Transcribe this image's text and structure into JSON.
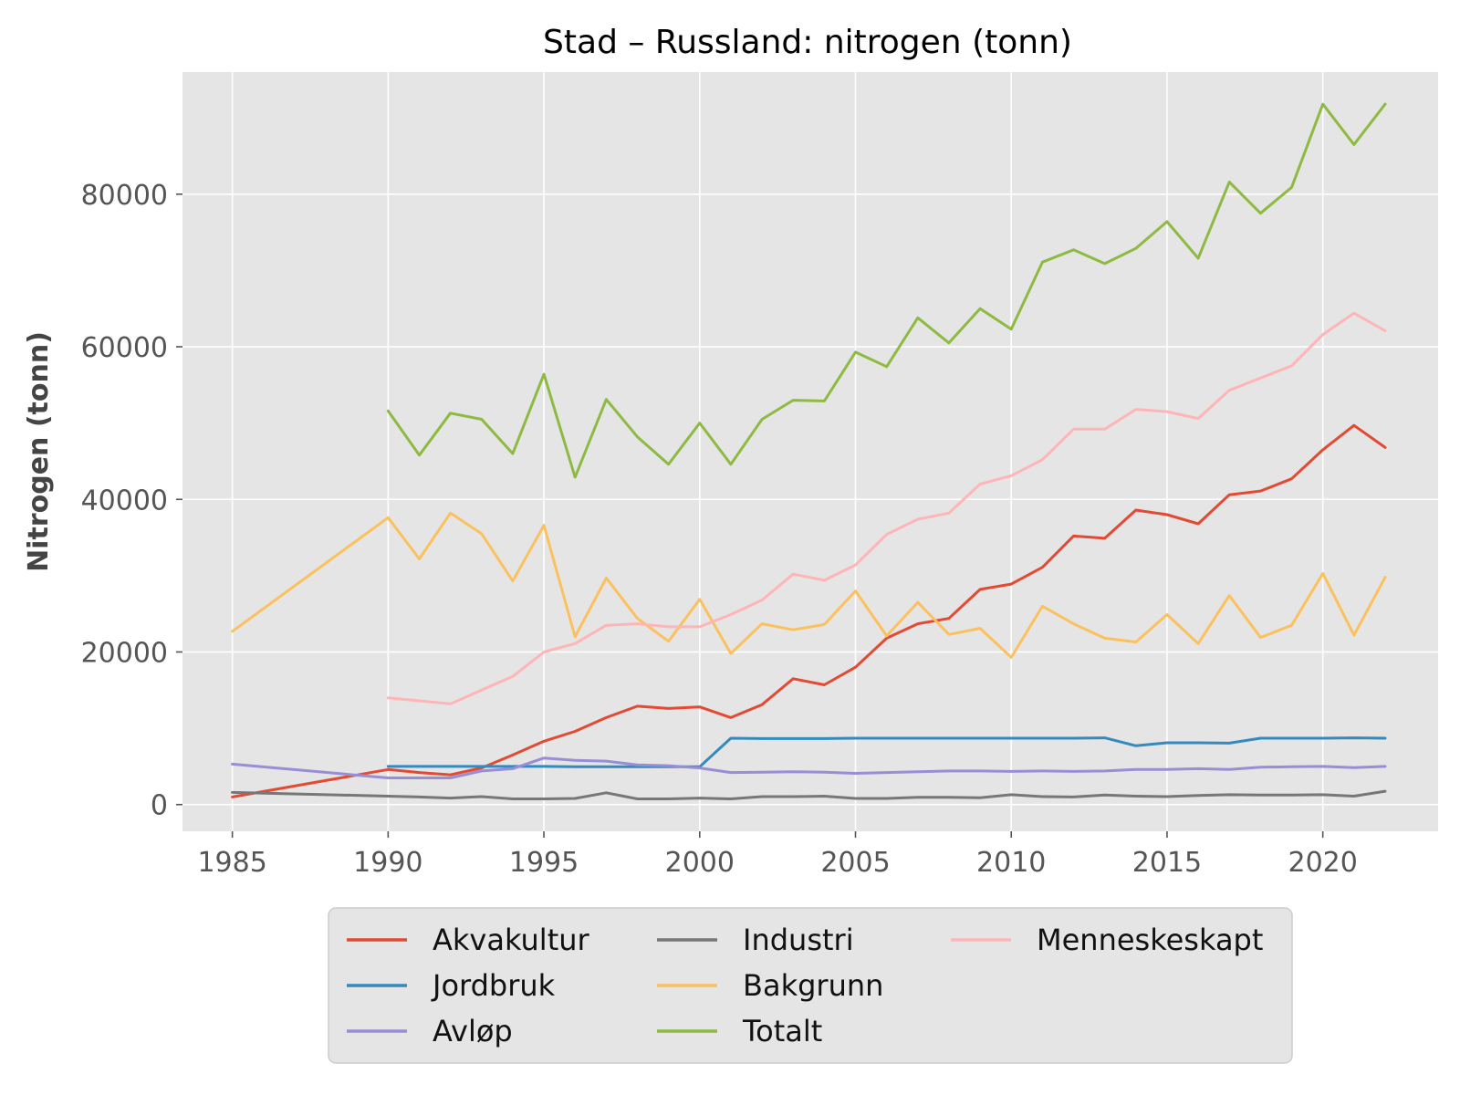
{
  "chart_data": {
    "type": "line",
    "title": "Stad – Russland: nitrogen (tonn)",
    "xlabel": "",
    "ylabel": "Nitrogen (tonn)",
    "xlim": [
      1983.4,
      2023.7
    ],
    "ylim": [
      -3500,
      96000
    ],
    "xticks": [
      1985,
      1990,
      1995,
      2000,
      2005,
      2010,
      2015,
      2020
    ],
    "yticks": [
      0,
      20000,
      40000,
      60000,
      80000
    ],
    "grid": true,
    "legend_position": "bottom",
    "legend_columns": 3,
    "series": [
      {
        "name": "Akvakultur",
        "color": "#E24A33",
        "points": [
          [
            1985,
            1000
          ],
          [
            1990,
            4600
          ],
          [
            1991,
            4200
          ],
          [
            1992,
            3900
          ],
          [
            1993,
            4800
          ],
          [
            1994,
            6500
          ],
          [
            1995,
            8300
          ],
          [
            1996,
            9600
          ],
          [
            1997,
            11400
          ],
          [
            1998,
            12900
          ],
          [
            1999,
            12600
          ],
          [
            2000,
            12800
          ],
          [
            2001,
            11400
          ],
          [
            2002,
            13100
          ],
          [
            2003,
            16500
          ],
          [
            2004,
            15700
          ],
          [
            2005,
            18000
          ],
          [
            2006,
            21800
          ],
          [
            2007,
            23700
          ],
          [
            2008,
            24400
          ],
          [
            2009,
            28200
          ],
          [
            2010,
            28900
          ],
          [
            2011,
            31100
          ],
          [
            2012,
            35200
          ],
          [
            2013,
            34900
          ],
          [
            2014,
            38600
          ],
          [
            2015,
            38000
          ],
          [
            2016,
            36800
          ],
          [
            2017,
            40600
          ],
          [
            2018,
            41100
          ],
          [
            2019,
            42700
          ],
          [
            2020,
            46500
          ],
          [
            2021,
            49700
          ],
          [
            2022,
            46800
          ]
        ]
      },
      {
        "name": "Jordbruk",
        "color": "#348ABD",
        "points": [
          [
            1990,
            5000
          ],
          [
            1991,
            5000
          ],
          [
            1992,
            5000
          ],
          [
            1993,
            5000
          ],
          [
            1994,
            5000
          ],
          [
            1995,
            5000
          ],
          [
            1996,
            4950
          ],
          [
            1997,
            4950
          ],
          [
            1998,
            4950
          ],
          [
            1999,
            4950
          ],
          [
            2000,
            4950
          ],
          [
            2001,
            8700
          ],
          [
            2002,
            8650
          ],
          [
            2003,
            8650
          ],
          [
            2004,
            8650
          ],
          [
            2005,
            8700
          ],
          [
            2006,
            8700
          ],
          [
            2007,
            8700
          ],
          [
            2008,
            8700
          ],
          [
            2009,
            8700
          ],
          [
            2010,
            8700
          ],
          [
            2011,
            8700
          ],
          [
            2012,
            8700
          ],
          [
            2013,
            8750
          ],
          [
            2014,
            7700
          ],
          [
            2015,
            8100
          ],
          [
            2016,
            8100
          ],
          [
            2017,
            8050
          ],
          [
            2018,
            8700
          ],
          [
            2019,
            8700
          ],
          [
            2020,
            8700
          ],
          [
            2021,
            8750
          ],
          [
            2022,
            8700
          ]
        ]
      },
      {
        "name": "Avløp",
        "color": "#988ED5",
        "points": [
          [
            1985,
            5300
          ],
          [
            1990,
            3500
          ],
          [
            1991,
            3500
          ],
          [
            1992,
            3500
          ],
          [
            1993,
            4400
          ],
          [
            1994,
            4700
          ],
          [
            1995,
            6100
          ],
          [
            1996,
            5800
          ],
          [
            1997,
            5700
          ],
          [
            1998,
            5200
          ],
          [
            1999,
            5100
          ],
          [
            2000,
            4800
          ],
          [
            2001,
            4200
          ],
          [
            2002,
            4250
          ],
          [
            2003,
            4300
          ],
          [
            2004,
            4250
          ],
          [
            2005,
            4100
          ],
          [
            2006,
            4200
          ],
          [
            2007,
            4300
          ],
          [
            2008,
            4400
          ],
          [
            2009,
            4400
          ],
          [
            2010,
            4350
          ],
          [
            2011,
            4400
          ],
          [
            2012,
            4350
          ],
          [
            2013,
            4400
          ],
          [
            2014,
            4600
          ],
          [
            2015,
            4600
          ],
          [
            2016,
            4700
          ],
          [
            2017,
            4600
          ],
          [
            2018,
            4900
          ],
          [
            2019,
            4950
          ],
          [
            2020,
            5000
          ],
          [
            2021,
            4850
          ],
          [
            2022,
            5000
          ]
        ]
      },
      {
        "name": "Industri",
        "color": "#777777",
        "points": [
          [
            1985,
            1600
          ],
          [
            1990,
            1100
          ],
          [
            1991,
            1000
          ],
          [
            1992,
            850
          ],
          [
            1993,
            1050
          ],
          [
            1994,
            750
          ],
          [
            1995,
            750
          ],
          [
            1996,
            800
          ],
          [
            1997,
            1550
          ],
          [
            1998,
            750
          ],
          [
            1999,
            750
          ],
          [
            2000,
            850
          ],
          [
            2001,
            750
          ],
          [
            2002,
            1050
          ],
          [
            2003,
            1050
          ],
          [
            2004,
            1100
          ],
          [
            2005,
            800
          ],
          [
            2006,
            800
          ],
          [
            2007,
            950
          ],
          [
            2008,
            950
          ],
          [
            2009,
            900
          ],
          [
            2010,
            1300
          ],
          [
            2011,
            1050
          ],
          [
            2012,
            1000
          ],
          [
            2013,
            1250
          ],
          [
            2014,
            1100
          ],
          [
            2015,
            1050
          ],
          [
            2016,
            1200
          ],
          [
            2017,
            1300
          ],
          [
            2018,
            1250
          ],
          [
            2019,
            1250
          ],
          [
            2020,
            1300
          ],
          [
            2021,
            1100
          ],
          [
            2022,
            1750
          ]
        ]
      },
      {
        "name": "Bakgrunn",
        "color": "#FBC15E",
        "points": [
          [
            1985,
            22700
          ],
          [
            1990,
            37600
          ],
          [
            1991,
            32200
          ],
          [
            1992,
            38200
          ],
          [
            1993,
            35500
          ],
          [
            1994,
            29300
          ],
          [
            1995,
            36600
          ],
          [
            1996,
            22000
          ],
          [
            1997,
            29700
          ],
          [
            1998,
            24400
          ],
          [
            1999,
            21400
          ],
          [
            2000,
            26900
          ],
          [
            2001,
            19800
          ],
          [
            2002,
            23700
          ],
          [
            2003,
            22900
          ],
          [
            2004,
            23600
          ],
          [
            2005,
            28000
          ],
          [
            2006,
            22100
          ],
          [
            2007,
            26500
          ],
          [
            2008,
            22300
          ],
          [
            2009,
            23100
          ],
          [
            2010,
            19300
          ],
          [
            2011,
            26000
          ],
          [
            2012,
            23700
          ],
          [
            2013,
            21800
          ],
          [
            2014,
            21300
          ],
          [
            2015,
            24900
          ],
          [
            2016,
            21100
          ],
          [
            2017,
            27400
          ],
          [
            2018,
            21900
          ],
          [
            2019,
            23500
          ],
          [
            2020,
            30300
          ],
          [
            2021,
            22200
          ],
          [
            2022,
            29800
          ]
        ]
      },
      {
        "name": "Totalt",
        "color": "#8EBA42",
        "points": [
          [
            1990,
            51600
          ],
          [
            1991,
            45800
          ],
          [
            1992,
            51300
          ],
          [
            1993,
            50500
          ],
          [
            1994,
            46000
          ],
          [
            1995,
            56400
          ],
          [
            1996,
            42900
          ],
          [
            1997,
            53100
          ],
          [
            1998,
            48200
          ],
          [
            1999,
            44600
          ],
          [
            2000,
            50000
          ],
          [
            2001,
            44600
          ],
          [
            2002,
            50500
          ],
          [
            2003,
            53000
          ],
          [
            2004,
            52900
          ],
          [
            2005,
            59300
          ],
          [
            2006,
            57400
          ],
          [
            2007,
            63800
          ],
          [
            2008,
            60500
          ],
          [
            2009,
            65000
          ],
          [
            2010,
            62300
          ],
          [
            2011,
            71100
          ],
          [
            2012,
            72700
          ],
          [
            2013,
            70900
          ],
          [
            2014,
            72900
          ],
          [
            2015,
            76400
          ],
          [
            2016,
            71600
          ],
          [
            2017,
            81600
          ],
          [
            2018,
            77500
          ],
          [
            2019,
            80900
          ],
          [
            2020,
            91800
          ],
          [
            2021,
            86500
          ],
          [
            2022,
            91800
          ]
        ]
      },
      {
        "name": "Menneskeskapt",
        "color": "#FFB5B8",
        "points": [
          [
            1990,
            14000
          ],
          [
            1991,
            13600
          ],
          [
            1992,
            13200
          ],
          [
            1993,
            15000
          ],
          [
            1994,
            16800
          ],
          [
            1995,
            20000
          ],
          [
            1996,
            21100
          ],
          [
            1997,
            23500
          ],
          [
            1998,
            23700
          ],
          [
            1999,
            23300
          ],
          [
            2000,
            23300
          ],
          [
            2001,
            24900
          ],
          [
            2002,
            26800
          ],
          [
            2003,
            30200
          ],
          [
            2004,
            29400
          ],
          [
            2005,
            31400
          ],
          [
            2006,
            35400
          ],
          [
            2007,
            37400
          ],
          [
            2008,
            38200
          ],
          [
            2009,
            42000
          ],
          [
            2010,
            43100
          ],
          [
            2011,
            45200
          ],
          [
            2012,
            49200
          ],
          [
            2013,
            49200
          ],
          [
            2014,
            51800
          ],
          [
            2015,
            51500
          ],
          [
            2016,
            50600
          ],
          [
            2017,
            54300
          ],
          [
            2018,
            55900
          ],
          [
            2019,
            57500
          ],
          [
            2020,
            61600
          ],
          [
            2021,
            64400
          ],
          [
            2022,
            62100
          ]
        ]
      }
    ]
  }
}
